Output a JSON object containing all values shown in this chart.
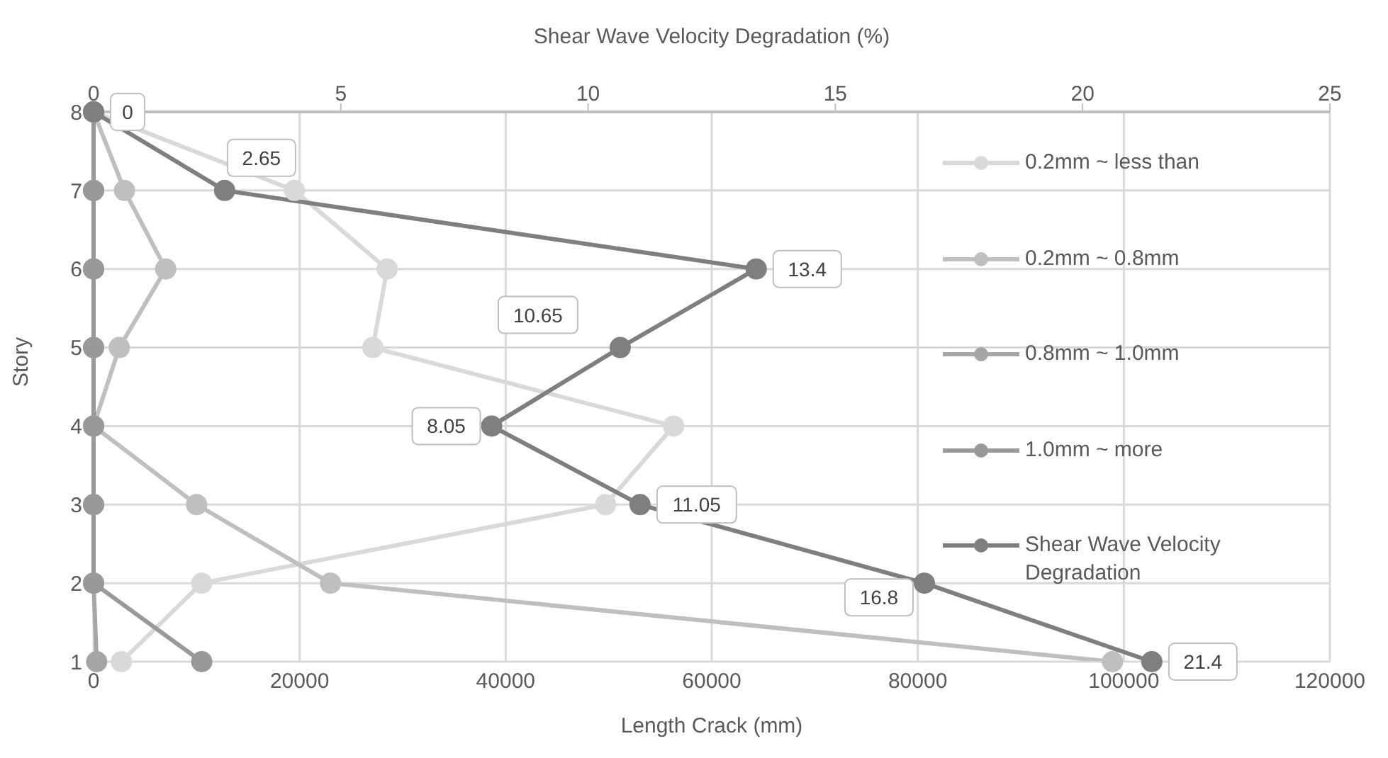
{
  "chart_data": {
    "type": "line",
    "orientation": "horizontal",
    "xlabel": "Length Crack (mm)",
    "x2label": "Shear Wave Velocity Degradation (%)",
    "ylabel": "Story",
    "categories": [
      "8",
      "7",
      "6",
      "5",
      "4",
      "3",
      "2",
      "1"
    ],
    "xlim": [
      0,
      120000
    ],
    "xticks": [
      0,
      20000,
      40000,
      60000,
      80000,
      100000,
      120000
    ],
    "x2lim": [
      0,
      25
    ],
    "x2ticks": [
      0,
      5,
      10,
      15,
      20,
      25
    ],
    "grid": true,
    "legend": "right",
    "marker": "circle",
    "line_style": "solid",
    "series": [
      {
        "name": "0.2mm ~ less than",
        "color": "#d9d9d9",
        "values": [
          0,
          19500,
          28500,
          27100,
          56300,
          49700,
          10500,
          2700
        ]
      },
      {
        "name": "0.2mm ~ 0.8mm",
        "color": "#bfbfbf",
        "values": [
          0,
          3000,
          7000,
          2500,
          0,
          10000,
          23000,
          98900
        ]
      },
      {
        "name": "0.8mm ~ 1.0mm",
        "color": "#a6a6a6",
        "values": [
          0,
          0,
          0,
          0,
          0,
          0,
          0,
          300
        ]
      },
      {
        "name": "1.0mm ~ more",
        "color": "#999999",
        "values": [
          0,
          0,
          0,
          0,
          0,
          0,
          0,
          10500
        ]
      },
      {
        "name": "Shear Wave Velocity Degradation",
        "color": "#7f7f7f",
        "axis": "x2",
        "values": [
          0,
          2.65,
          13.4,
          10.65,
          8.05,
          11.05,
          16.8,
          21.4
        ],
        "data_labels": true
      }
    ]
  }
}
